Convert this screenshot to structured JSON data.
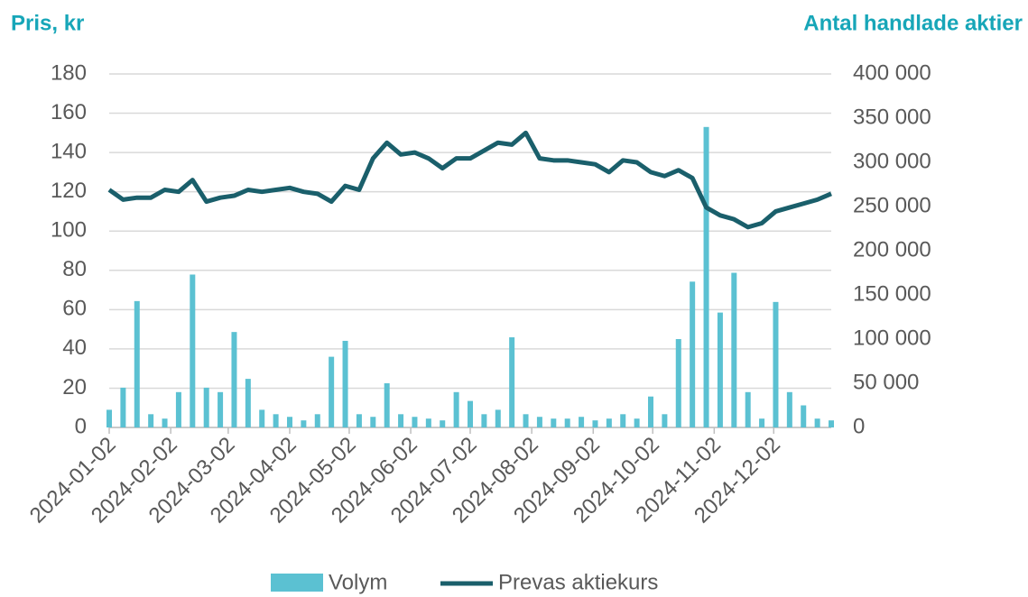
{
  "chart_data": {
    "type": "combo",
    "y_label": "Pris, kr",
    "y2_label": "Antal handlade aktier",
    "x": [
      "2024-01-02",
      "2024-01-09",
      "2024-01-16",
      "2024-01-23",
      "2024-01-30",
      "2024-02-06",
      "2024-02-13",
      "2024-02-20",
      "2024-02-27",
      "2024-03-05",
      "2024-03-12",
      "2024-03-19",
      "2024-03-26",
      "2024-04-02",
      "2024-04-09",
      "2024-04-16",
      "2024-04-23",
      "2024-04-30",
      "2024-05-07",
      "2024-05-14",
      "2024-05-21",
      "2024-05-28",
      "2024-06-04",
      "2024-06-11",
      "2024-06-18",
      "2024-06-25",
      "2024-07-02",
      "2024-07-09",
      "2024-07-16",
      "2024-07-23",
      "2024-07-30",
      "2024-08-06",
      "2024-08-13",
      "2024-08-20",
      "2024-08-27",
      "2024-09-03",
      "2024-09-10",
      "2024-09-17",
      "2024-09-24",
      "2024-10-01",
      "2024-10-08",
      "2024-10-15",
      "2024-10-22",
      "2024-10-29",
      "2024-11-05",
      "2024-11-12",
      "2024-11-19",
      "2024-11-26",
      "2024-12-03",
      "2024-12-10",
      "2024-12-17",
      "2024-12-24",
      "2024-12-31"
    ],
    "series": [
      {
        "name": "Volym",
        "type": "bar",
        "axis": "y2",
        "color": "#5bc1d2",
        "values": [
          20000,
          45000,
          143000,
          15000,
          10000,
          40000,
          173000,
          45000,
          40000,
          108000,
          55000,
          20000,
          15000,
          12000,
          8000,
          15000,
          80000,
          98000,
          15000,
          12000,
          50000,
          15000,
          12000,
          10000,
          8000,
          40000,
          30000,
          15000,
          20000,
          102000,
          15000,
          12000,
          10000,
          10000,
          12000,
          8000,
          10000,
          15000,
          10000,
          35000,
          15000,
          100000,
          165000,
          340000,
          130000,
          175000,
          40000,
          10000,
          142000,
          40000,
          25000,
          10000,
          8000
        ]
      },
      {
        "name": "Prevas aktiekurs",
        "type": "line",
        "axis": "y",
        "color": "#1a5f6b",
        "values": [
          121,
          116,
          117,
          117,
          121,
          120,
          126,
          115,
          117,
          118,
          121,
          120,
          121,
          122,
          120,
          119,
          115,
          123,
          121,
          137,
          145,
          139,
          140,
          137,
          132,
          137,
          137,
          141,
          145,
          144,
          150,
          137,
          136,
          136,
          135,
          134,
          130,
          136,
          135,
          130,
          128,
          131,
          127,
          112,
          108,
          106,
          102,
          104,
          110,
          112,
          114,
          116,
          119
        ]
      }
    ],
    "xlim": [
      "2024-01-02",
      "2024-12-31"
    ],
    "xticks": [
      "2024-01-02",
      "2024-02-02",
      "2024-03-02",
      "2024-04-02",
      "2024-05-02",
      "2024-06-02",
      "2024-07-02",
      "2024-08-02",
      "2024-09-02",
      "2024-10-02",
      "2024-11-02",
      "2024-12-02"
    ],
    "ylim": [
      0,
      180
    ],
    "yticks": [
      0,
      20,
      40,
      60,
      80,
      100,
      120,
      140,
      160,
      180
    ],
    "y2lim": [
      0,
      400000
    ],
    "y2ticks": [
      0,
      {
        "value": 50000,
        "label": "50 000"
      },
      {
        "value": 100000,
        "label": "100 000"
      },
      {
        "value": 150000,
        "label": "150 000"
      },
      {
        "value": 200000,
        "label": "200 000"
      },
      {
        "value": 250000,
        "label": "250 000"
      },
      {
        "value": 300000,
        "label": "300 000"
      },
      {
        "value": 350000,
        "label": "350 000"
      },
      {
        "value": 400000,
        "label": "400 000"
      }
    ],
    "grid": true
  }
}
